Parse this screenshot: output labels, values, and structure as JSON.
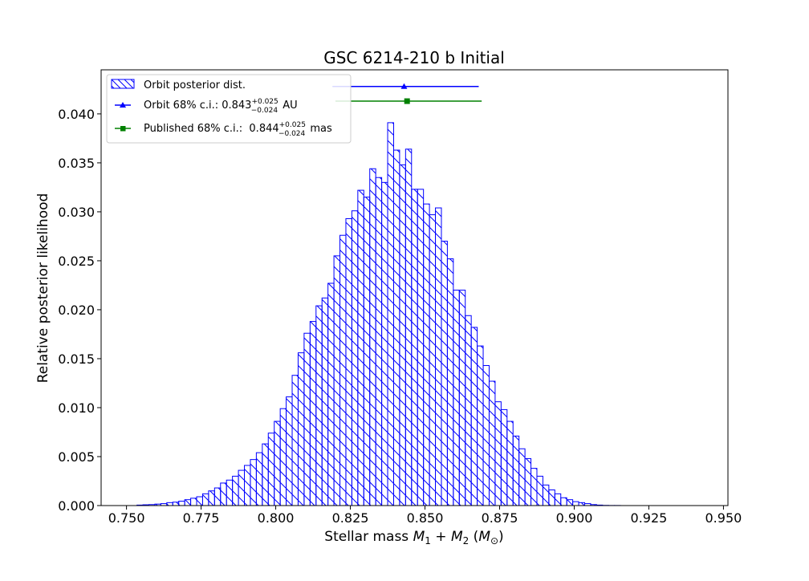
{
  "chart_data": {
    "type": "bar",
    "title": "GSC 6214-210 b Initial",
    "xlabel_main": "Stellar mass ",
    "xlabel_math": "M",
    "xlabel_sub1": "1",
    "xlabel_plus": " + ",
    "xlabel_sub2": "2",
    "xlabel_unit_open": " (",
    "xlabel_unit_sub": "⊙",
    "xlabel_unit_close": ")",
    "ylabel": "Relative posterior likelihood",
    "xlim": [
      0.7415,
      0.9515
    ],
    "ylim": [
      0.0,
      0.0445
    ],
    "x_ticks": [
      0.75,
      0.775,
      0.8,
      0.825,
      0.85,
      0.875,
      0.9,
      0.925,
      0.95
    ],
    "x_tick_labels": [
      "0.750",
      "0.775",
      "0.800",
      "0.825",
      "0.850",
      "0.875",
      "0.900",
      "0.925",
      "0.950"
    ],
    "y_ticks": [
      0.0,
      0.005,
      0.01,
      0.015,
      0.02,
      0.025,
      0.03,
      0.035,
      0.04
    ],
    "y_tick_labels": [
      "0.000",
      "0.005",
      "0.010",
      "0.015",
      "0.020",
      "0.025",
      "0.030",
      "0.035",
      "0.040"
    ],
    "bin_start": 0.7535,
    "bin_width": 0.002,
    "values": [
      5e-05,
      8e-05,
      0.0001,
      0.00015,
      0.0002,
      0.0003,
      0.00035,
      0.00045,
      0.0006,
      0.00075,
      0.0009,
      0.0012,
      0.0015,
      0.0018,
      0.0023,
      0.0026,
      0.003,
      0.0036,
      0.0041,
      0.0047,
      0.0054,
      0.0063,
      0.0074,
      0.0086,
      0.0099,
      0.0111,
      0.0133,
      0.0156,
      0.0176,
      0.0188,
      0.0204,
      0.0212,
      0.0227,
      0.0255,
      0.0276,
      0.0293,
      0.0301,
      0.0322,
      0.0315,
      0.0344,
      0.0335,
      0.033,
      0.0391,
      0.0363,
      0.0348,
      0.0364,
      0.0323,
      0.0323,
      0.0308,
      0.0297,
      0.0304,
      0.027,
      0.0252,
      0.022,
      0.022,
      0.0194,
      0.0182,
      0.0163,
      0.0143,
      0.0127,
      0.0106,
      0.0098,
      0.0086,
      0.0071,
      0.0058,
      0.0048,
      0.0038,
      0.003,
      0.0021,
      0.0016,
      0.0012,
      0.0008,
      0.0006,
      0.0004,
      0.0003,
      0.0002,
      0.0001,
      5e-05,
      2e-05,
      1e-05,
      1e-05
    ],
    "hist_color": "#0000ff",
    "errorbars": [
      {
        "name": "Orbit",
        "center": 0.843,
        "lower": 0.819,
        "upper": 0.868,
        "y": 0.0428,
        "color": "#0000ff",
        "marker": "triangle"
      },
      {
        "name": "Published",
        "center": 0.844,
        "lower": 0.82,
        "upper": 0.869,
        "y": 0.0413,
        "color": "#008000",
        "marker": "square"
      }
    ],
    "legend": {
      "placement": "top-left",
      "entries": [
        {
          "label": "Orbit posterior dist.",
          "marker": "hatch-patch",
          "color": "#0000ff"
        },
        {
          "prefix": "Orbit 68% c.i.: 0.843",
          "sup": "+0.025",
          "sub": "−0.024",
          "suffix": " AU",
          "marker": "triangle",
          "color": "#0000ff"
        },
        {
          "prefix": "Published 68% c.i.:  0.844",
          "sup": "+0.025",
          "sub": "−0.024",
          "suffix": " mas",
          "marker": "square",
          "color": "#008000"
        }
      ]
    }
  }
}
